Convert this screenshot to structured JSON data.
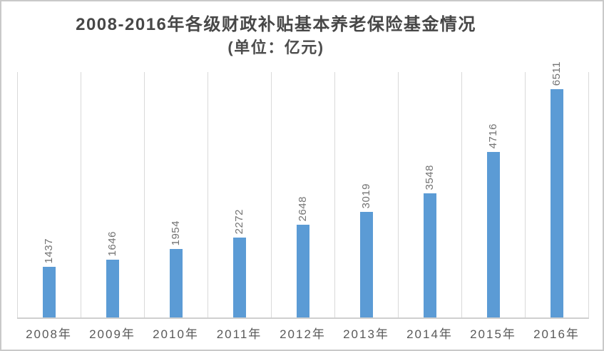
{
  "title": {
    "line1": "2008-2016年各级财政补贴基本养老保险基金情况",
    "line2": "(单位：亿元)"
  },
  "chart_data": {
    "type": "bar",
    "title": "2008-2016年各级财政补贴基本养老保险基金情况",
    "subtitle": "(单位：亿元)",
    "categories": [
      "2008年",
      "2009年",
      "2010年",
      "2011年",
      "2012年",
      "2013年",
      "2014年",
      "2015年",
      "2016年"
    ],
    "values": [
      1437,
      1646,
      1954,
      2272,
      2648,
      3019,
      3548,
      4716,
      6511
    ],
    "xlabel": "",
    "ylabel": "",
    "ylim": [
      0,
      7000
    ],
    "grid": "vertical-category-separators-only",
    "legend": "none",
    "value_label_rotation": -90,
    "colors": {
      "bar": "#5b9bd5",
      "gridline": "#d9d9d9",
      "axis_line": "#cfcfcf",
      "title_text": "#474747",
      "value_label_text": "#737373",
      "tick_label_text": "#595959",
      "background": "#ffffff",
      "outer_border": "#c9c9c9"
    }
  }
}
